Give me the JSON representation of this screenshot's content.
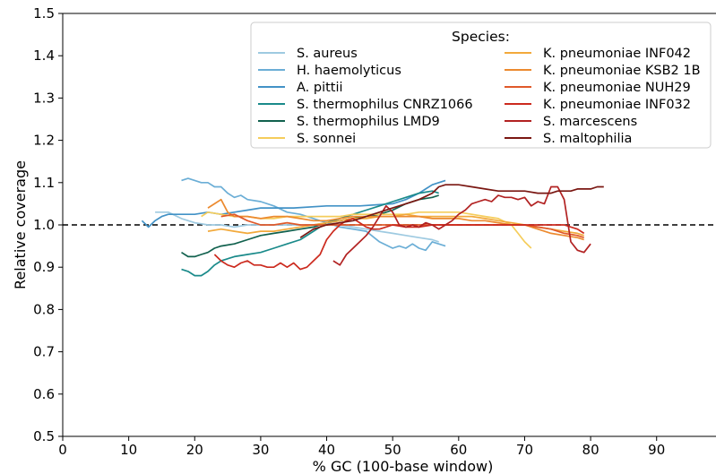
{
  "chart_data": {
    "type": "line",
    "title": "",
    "xlabel": "% GC (100-base window)",
    "ylabel": "Relative coverage",
    "xlim": [
      0,
      99
    ],
    "ylim": [
      0.5,
      1.5
    ],
    "xticks": [
      "0",
      "10",
      "20",
      "30",
      "40",
      "50",
      "60",
      "70",
      "80",
      "90"
    ],
    "yticks": [
      "0.5",
      "0.6",
      "0.7",
      "0.8",
      "0.9",
      "1.0",
      "1.1",
      "1.2",
      "1.3",
      "1.4",
      "1.5"
    ],
    "grid": false,
    "reference_line": {
      "y": 1.0,
      "style": "dashed",
      "color": "#000000"
    },
    "legend": {
      "title": "Species:",
      "placement": "top-right",
      "columns": 2
    },
    "series": [
      {
        "name": "S. aureus",
        "color": "#9ecae1",
        "x": [
          14,
          16,
          18,
          20,
          22,
          24,
          26,
          28,
          30,
          32,
          34,
          36,
          38,
          40,
          42,
          44,
          46,
          48,
          50,
          52,
          54,
          56,
          57
        ],
        "y": [
          1.03,
          1.03,
          1.015,
          1.005,
          1.0,
          1.0,
          0.995,
          1.0,
          1.0,
          1.0,
          1.0,
          1.0,
          1.0,
          1.005,
          1.0,
          0.995,
          0.99,
          0.985,
          0.98,
          0.975,
          0.97,
          0.965,
          0.96
        ]
      },
      {
        "name": "H. haemolyticus",
        "color": "#6baed6",
        "x": [
          18,
          19,
          20,
          21,
          22,
          23,
          24,
          25,
          26,
          27,
          28,
          30,
          32,
          34,
          36,
          38,
          40,
          42,
          44,
          46,
          48,
          50,
          51,
          52,
          53,
          54,
          55,
          56,
          58
        ],
        "y": [
          1.105,
          1.11,
          1.105,
          1.1,
          1.1,
          1.09,
          1.09,
          1.075,
          1.065,
          1.07,
          1.06,
          1.055,
          1.045,
          1.03,
          1.025,
          1.015,
          1.005,
          0.995,
          0.99,
          0.985,
          0.96,
          0.945,
          0.95,
          0.945,
          0.955,
          0.945,
          0.94,
          0.96,
          0.95
        ]
      },
      {
        "name": "A. pittii",
        "color": "#4292c6",
        "x": [
          12,
          13,
          14,
          15,
          16,
          18,
          20,
          22,
          24,
          26,
          28,
          30,
          35,
          40,
          45,
          50,
          52,
          54,
          55,
          56,
          57,
          58
        ],
        "y": [
          1.01,
          0.995,
          1.01,
          1.02,
          1.025,
          1.025,
          1.025,
          1.03,
          1.025,
          1.03,
          1.035,
          1.04,
          1.04,
          1.045,
          1.045,
          1.05,
          1.06,
          1.075,
          1.085,
          1.095,
          1.1,
          1.105
        ]
      },
      {
        "name": "S. thermophilus CNRZ1066",
        "color": "#1a8a8a",
        "x": [
          18,
          19,
          20,
          21,
          22,
          23,
          24,
          26,
          28,
          30,
          32,
          34,
          36,
          38,
          40,
          42,
          44,
          46,
          48,
          50,
          52,
          54,
          56,
          57
        ],
        "y": [
          0.895,
          0.89,
          0.88,
          0.88,
          0.89,
          0.905,
          0.915,
          0.925,
          0.93,
          0.935,
          0.945,
          0.955,
          0.965,
          0.985,
          1.005,
          1.015,
          1.025,
          1.035,
          1.045,
          1.055,
          1.065,
          1.075,
          1.08,
          1.075
        ]
      },
      {
        "name": "S. thermophilus LMD9",
        "color": "#11614e",
        "x": [
          18,
          19,
          20,
          21,
          22,
          23,
          24,
          26,
          28,
          30,
          32,
          34,
          36,
          38,
          40,
          42,
          44,
          46,
          48,
          50,
          52,
          54,
          56,
          57
        ],
        "y": [
          0.935,
          0.925,
          0.925,
          0.93,
          0.935,
          0.945,
          0.95,
          0.955,
          0.965,
          0.975,
          0.98,
          0.985,
          0.99,
          0.995,
          1.005,
          1.01,
          1.015,
          1.02,
          1.025,
          1.035,
          1.05,
          1.06,
          1.065,
          1.07
        ]
      },
      {
        "name": "S. sonnei",
        "color": "#f5cd5b",
        "x": [
          21,
          22,
          24,
          26,
          28,
          30,
          32,
          34,
          36,
          38,
          40,
          42,
          44,
          46,
          48,
          50,
          52,
          54,
          56,
          58,
          60,
          62,
          64,
          66,
          68,
          69,
          70,
          71
        ],
        "y": [
          1.02,
          1.03,
          1.025,
          1.02,
          1.02,
          1.015,
          1.015,
          1.02,
          1.02,
          1.02,
          1.02,
          1.02,
          1.025,
          1.025,
          1.025,
          1.025,
          1.025,
          1.03,
          1.03,
          1.03,
          1.03,
          1.025,
          1.02,
          1.015,
          1.0,
          0.98,
          0.96,
          0.945
        ]
      },
      {
        "name": "K. pneumoniae INF042",
        "color": "#f2a93b",
        "x": [
          22,
          24,
          26,
          28,
          30,
          32,
          34,
          36,
          38,
          40,
          42,
          44,
          46,
          48,
          50,
          52,
          54,
          56,
          58,
          60,
          62,
          64,
          66,
          68,
          70,
          72,
          74,
          76,
          78,
          79
        ],
        "y": [
          0.985,
          0.99,
          0.985,
          0.98,
          0.985,
          0.985,
          0.99,
          0.995,
          1.0,
          1.005,
          1.01,
          1.015,
          1.015,
          1.02,
          1.02,
          1.025,
          1.02,
          1.02,
          1.02,
          1.02,
          1.02,
          1.015,
          1.01,
          1.005,
          1.0,
          0.995,
          0.99,
          0.985,
          0.98,
          0.975
        ]
      },
      {
        "name": "K. pneumoniae KSB2 1B",
        "color": "#ec8a2f",
        "x": [
          22,
          23,
          24,
          25,
          26,
          28,
          30,
          32,
          34,
          36,
          38,
          40,
          42,
          44,
          46,
          48,
          50,
          52,
          54,
          56,
          58,
          60,
          62,
          64,
          66,
          68,
          70,
          72,
          74,
          76,
          78,
          79
        ],
        "y": [
          1.04,
          1.05,
          1.06,
          1.03,
          1.02,
          1.02,
          1.015,
          1.02,
          1.02,
          1.015,
          1.01,
          1.01,
          1.015,
          1.02,
          1.02,
          1.02,
          1.02,
          1.02,
          1.02,
          1.015,
          1.015,
          1.015,
          1.01,
          1.01,
          1.005,
          1.0,
          1.0,
          0.99,
          0.98,
          0.975,
          0.97,
          0.965
        ]
      },
      {
        "name": "K. pneumoniae NUH29",
        "color": "#e0592a",
        "x": [
          24,
          26,
          28,
          30,
          32,
          34,
          36,
          38,
          40,
          42,
          44,
          46,
          48,
          50,
          52,
          54,
          56,
          58,
          60,
          62,
          64,
          66,
          68,
          70,
          72,
          74,
          76,
          78,
          79
        ],
        "y": [
          1.02,
          1.025,
          1.01,
          1.0,
          1.0,
          1.005,
          1.0,
          1.0,
          1.0,
          1.0,
          1.0,
          1.0,
          1.0,
          1.0,
          1.0,
          1.0,
          1.0,
          1.0,
          1.0,
          1.0,
          1.0,
          1.0,
          1.0,
          1.0,
          0.995,
          0.99,
          0.98,
          0.975,
          0.97
        ]
      },
      {
        "name": "K. pneumoniae INF032",
        "color": "#cc2a1e",
        "x": [
          23,
          24,
          25,
          26,
          27,
          28,
          29,
          30,
          31,
          32,
          33,
          34,
          35,
          36,
          37,
          38,
          39,
          40,
          41,
          42,
          43,
          44,
          45,
          46,
          47,
          48,
          50,
          52,
          54,
          56,
          58,
          60,
          62,
          64,
          66,
          68,
          70,
          72,
          74,
          76,
          78,
          79
        ],
        "y": [
          0.93,
          0.915,
          0.905,
          0.9,
          0.91,
          0.915,
          0.905,
          0.905,
          0.9,
          0.9,
          0.91,
          0.9,
          0.91,
          0.895,
          0.9,
          0.915,
          0.93,
          0.965,
          0.985,
          1.0,
          1.01,
          1.015,
          1.005,
          0.995,
          0.99,
          0.99,
          1.0,
          0.995,
          0.995,
          1.0,
          1.0,
          1.0,
          1.0,
          1.0,
          1.0,
          1.0,
          1.0,
          1.0,
          1.0,
          1.0,
          0.99,
          0.98
        ]
      },
      {
        "name": "S. marcescens",
        "color": "#b22222",
        "x": [
          41,
          42,
          43,
          44,
          45,
          46,
          47,
          48,
          49,
          50,
          51,
          52,
          53,
          54,
          55,
          56,
          57,
          58,
          59,
          60,
          61,
          62,
          63,
          64,
          65,
          66,
          67,
          68,
          69,
          70,
          71,
          72,
          73,
          74,
          75,
          76,
          77,
          78,
          79,
          80
        ],
        "y": [
          0.915,
          0.905,
          0.93,
          0.945,
          0.96,
          0.975,
          0.995,
          1.02,
          1.045,
          1.03,
          1.0,
          0.995,
          1.0,
          0.995,
          1.005,
          1.0,
          0.99,
          1.0,
          1.01,
          1.025,
          1.035,
          1.05,
          1.055,
          1.06,
          1.055,
          1.07,
          1.065,
          1.065,
          1.06,
          1.065,
          1.045,
          1.055,
          1.05,
          1.09,
          1.09,
          1.06,
          0.96,
          0.94,
          0.935,
          0.955
        ]
      },
      {
        "name": "S. maltophilia",
        "color": "#7a1712",
        "x": [
          36,
          38,
          40,
          42,
          44,
          46,
          48,
          50,
          52,
          54,
          56,
          57,
          58,
          60,
          62,
          64,
          66,
          68,
          70,
          72,
          74,
          75,
          76,
          77,
          78,
          79,
          80,
          81,
          82
        ],
        "y": [
          0.97,
          0.99,
          1.0,
          1.005,
          1.01,
          1.02,
          1.03,
          1.04,
          1.05,
          1.06,
          1.075,
          1.09,
          1.095,
          1.095,
          1.09,
          1.085,
          1.08,
          1.08,
          1.08,
          1.075,
          1.075,
          1.08,
          1.08,
          1.08,
          1.085,
          1.085,
          1.085,
          1.09,
          1.09
        ]
      }
    ]
  }
}
